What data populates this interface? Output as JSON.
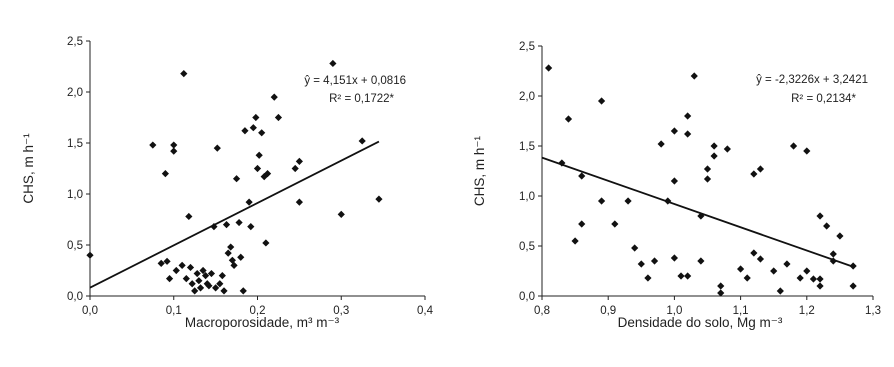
{
  "chart_data": [
    {
      "type": "scatter",
      "xlabel": "Macroporosidade, m³ m⁻³",
      "ylabel": "CHS, m h⁻¹",
      "xlim": [
        0,
        0.4
      ],
      "ylim": [
        0,
        2.5
      ],
      "xticks": [
        "0,0",
        "0,1",
        "0,2",
        "0,3",
        "0,4"
      ],
      "yticks": [
        "0,0",
        "0,5",
        "1,0",
        "1,5",
        "2,0",
        "2,5"
      ],
      "equation": "ŷ = 4,151x + 0,0816",
      "r2": "R² = 0,1722*",
      "regression": {
        "slope": 4.151,
        "intercept": 0.0816,
        "x_range": [
          0,
          0.345
        ]
      },
      "points": [
        [
          0.0,
          0.4
        ],
        [
          0.075,
          1.48
        ],
        [
          0.085,
          0.32
        ],
        [
          0.09,
          1.2
        ],
        [
          0.092,
          0.34
        ],
        [
          0.095,
          0.17
        ],
        [
          0.1,
          1.48
        ],
        [
          0.1,
          1.42
        ],
        [
          0.103,
          0.25
        ],
        [
          0.11,
          0.3
        ],
        [
          0.112,
          2.18
        ],
        [
          0.115,
          0.17
        ],
        [
          0.118,
          0.78
        ],
        [
          0.12,
          0.28
        ],
        [
          0.122,
          0.12
        ],
        [
          0.125,
          0.05
        ],
        [
          0.128,
          0.22
        ],
        [
          0.13,
          0.15
        ],
        [
          0.132,
          0.08
        ],
        [
          0.135,
          0.25
        ],
        [
          0.138,
          0.2
        ],
        [
          0.14,
          0.12
        ],
        [
          0.142,
          0.1
        ],
        [
          0.145,
          0.22
        ],
        [
          0.148,
          0.68
        ],
        [
          0.15,
          0.08
        ],
        [
          0.152,
          1.45
        ],
        [
          0.155,
          0.12
        ],
        [
          0.158,
          0.2
        ],
        [
          0.16,
          0.05
        ],
        [
          0.163,
          0.7
        ],
        [
          0.165,
          0.42
        ],
        [
          0.168,
          0.48
        ],
        [
          0.17,
          0.35
        ],
        [
          0.172,
          0.3
        ],
        [
          0.175,
          1.15
        ],
        [
          0.178,
          0.72
        ],
        [
          0.18,
          0.38
        ],
        [
          0.183,
          0.05
        ],
        [
          0.185,
          1.62
        ],
        [
          0.19,
          0.92
        ],
        [
          0.192,
          0.68
        ],
        [
          0.195,
          1.65
        ],
        [
          0.198,
          1.75
        ],
        [
          0.2,
          1.25
        ],
        [
          0.202,
          1.38
        ],
        [
          0.205,
          1.6
        ],
        [
          0.208,
          1.17
        ],
        [
          0.21,
          0.52
        ],
        [
          0.212,
          1.2
        ],
        [
          0.22,
          1.95
        ],
        [
          0.225,
          1.75
        ],
        [
          0.245,
          1.25
        ],
        [
          0.25,
          1.32
        ],
        [
          0.25,
          0.92
        ],
        [
          0.29,
          2.28
        ],
        [
          0.3,
          0.8
        ],
        [
          0.325,
          1.52
        ],
        [
          0.345,
          0.95
        ]
      ]
    },
    {
      "type": "scatter",
      "xlabel": "Densidade do solo, Mg m⁻³",
      "ylabel": "CHS, m h⁻¹",
      "xlim": [
        0.8,
        1.3
      ],
      "ylim": [
        0,
        2.5
      ],
      "xticks": [
        "0,8",
        "0,9",
        "1,0",
        "1,1",
        "1,2",
        "1,3"
      ],
      "yticks": [
        "0,0",
        "0,5",
        "1,0",
        "1,5",
        "2,0",
        "2,5"
      ],
      "equation": "ŷ = -2,3226x + 3,2421",
      "r2": "R² = 0,2134*",
      "regression": {
        "slope": -2.3226,
        "intercept": 3.2421,
        "x_range": [
          0.8,
          1.27
        ]
      },
      "points": [
        [
          0.81,
          2.28
        ],
        [
          0.83,
          1.33
        ],
        [
          0.84,
          1.77
        ],
        [
          0.85,
          0.55
        ],
        [
          0.86,
          1.2
        ],
        [
          0.86,
          0.72
        ],
        [
          0.89,
          1.95
        ],
        [
          0.89,
          0.95
        ],
        [
          0.91,
          0.72
        ],
        [
          0.93,
          0.95
        ],
        [
          0.94,
          0.48
        ],
        [
          0.95,
          0.32
        ],
        [
          0.96,
          0.18
        ],
        [
          0.97,
          0.35
        ],
        [
          0.98,
          1.52
        ],
        [
          0.99,
          0.95
        ],
        [
          1.0,
          1.65
        ],
        [
          1.0,
          1.15
        ],
        [
          1.0,
          0.38
        ],
        [
          1.01,
          0.2
        ],
        [
          1.02,
          1.62
        ],
        [
          1.02,
          1.8
        ],
        [
          1.02,
          0.2
        ],
        [
          1.03,
          2.2
        ],
        [
          1.04,
          0.8
        ],
        [
          1.04,
          0.35
        ],
        [
          1.05,
          1.27
        ],
        [
          1.05,
          1.17
        ],
        [
          1.06,
          1.5
        ],
        [
          1.06,
          1.4
        ],
        [
          1.07,
          0.1
        ],
        [
          1.07,
          0.03
        ],
        [
          1.08,
          1.47
        ],
        [
          1.1,
          0.27
        ],
        [
          1.11,
          0.18
        ],
        [
          1.12,
          1.22
        ],
        [
          1.12,
          0.43
        ],
        [
          1.13,
          1.27
        ],
        [
          1.13,
          0.37
        ],
        [
          1.15,
          0.25
        ],
        [
          1.16,
          0.05
        ],
        [
          1.17,
          0.32
        ],
        [
          1.18,
          1.5
        ],
        [
          1.19,
          0.18
        ],
        [
          1.2,
          1.45
        ],
        [
          1.2,
          0.25
        ],
        [
          1.21,
          0.17
        ],
        [
          1.22,
          0.17
        ],
        [
          1.22,
          0.8
        ],
        [
          1.22,
          0.1
        ],
        [
          1.23,
          0.7
        ],
        [
          1.24,
          0.42
        ],
        [
          1.24,
          0.35
        ],
        [
          1.25,
          0.6
        ],
        [
          1.27,
          0.3
        ],
        [
          1.27,
          0.1
        ]
      ]
    }
  ]
}
